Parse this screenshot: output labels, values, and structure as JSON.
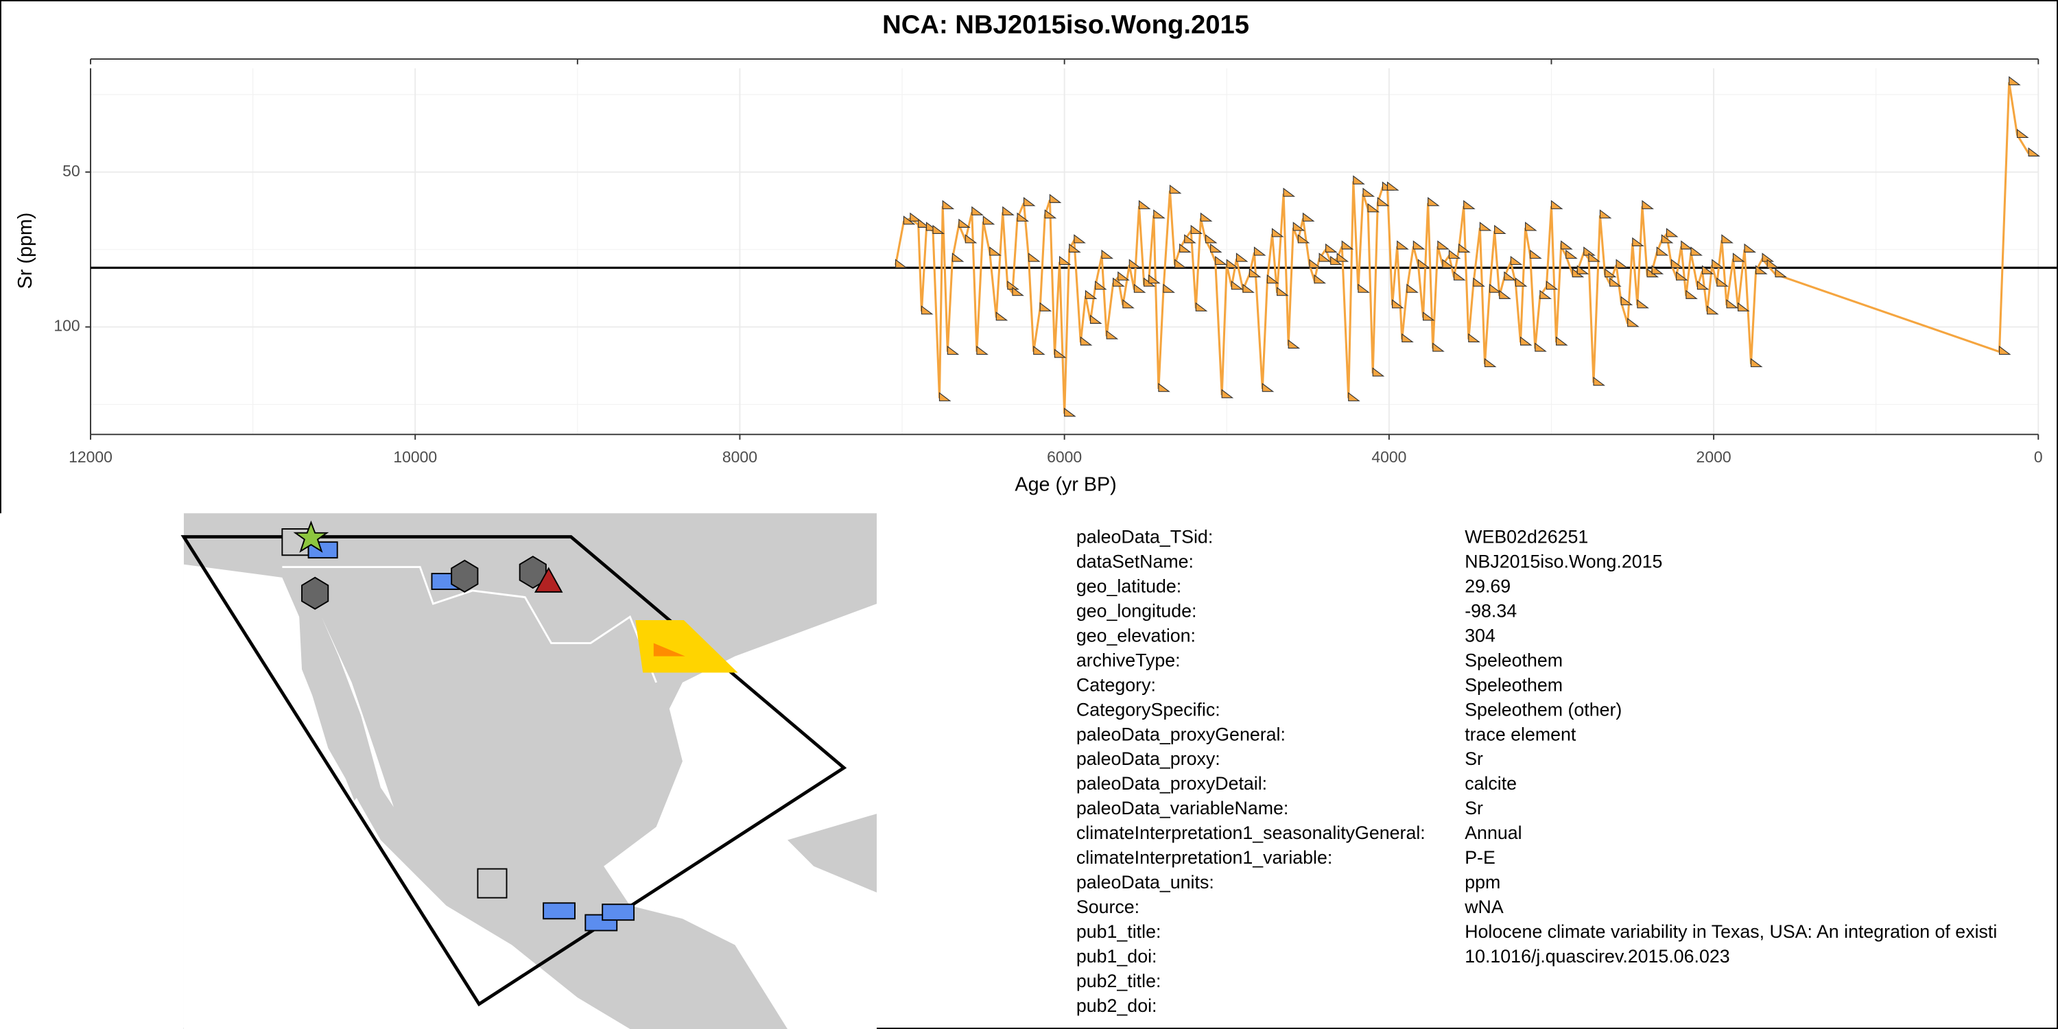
{
  "chart_data": {
    "type": "line",
    "title": "NCA: NBJ2015iso.Wong.2015",
    "x_label": "Age (yr BP)",
    "y_label": "Sr (ppm)",
    "color": "#f5a53f",
    "xlim": [
      12000,
      0
    ],
    "xticks": [
      12000,
      10000,
      8000,
      6000,
      4000,
      2000,
      0
    ],
    "x2ticks": [
      12000,
      9000,
      6000,
      3000,
      0
    ],
    "ylim": [
      134.7,
      16.5
    ],
    "yticks": [
      50,
      100
    ],
    "y_reversed": true,
    "grid": true,
    "reference_line": 80.9,
    "x": [
      7040,
      6990,
      6950,
      6900,
      6880,
      6850,
      6810,
      6770,
      6750,
      6720,
      6690,
      6650,
      6610,
      6570,
      6540,
      6500,
      6460,
      6420,
      6380,
      6350,
      6320,
      6290,
      6250,
      6220,
      6190,
      6150,
      6120,
      6090,
      6060,
      6030,
      6000,
      5970,
      5940,
      5900,
      5870,
      5840,
      5810,
      5770,
      5740,
      5700,
      5670,
      5640,
      5600,
      5570,
      5540,
      5510,
      5480,
      5450,
      5420,
      5390,
      5350,
      5320,
      5290,
      5260,
      5220,
      5190,
      5160,
      5130,
      5100,
      5070,
      5030,
      5000,
      4970,
      4940,
      4900,
      4860,
      4830,
      4780,
      4750,
      4720,
      4690,
      4650,
      4620,
      4590,
      4560,
      4530,
      4490,
      4460,
      4430,
      4390,
      4360,
      4320,
      4290,
      4250,
      4220,
      4190,
      4160,
      4130,
      4100,
      4070,
      4040,
      4010,
      3980,
      3950,
      3920,
      3890,
      3850,
      3820,
      3790,
      3760,
      3730,
      3700,
      3670,
      3630,
      3600,
      3570,
      3540,
      3510,
      3480,
      3440,
      3410,
      3380,
      3350,
      3320,
      3290,
      3250,
      3220,
      3190,
      3160,
      3130,
      3100,
      3070,
      3030,
      3000,
      2970,
      2940,
      2910,
      2870,
      2840,
      2800,
      2770,
      2740,
      2700,
      2670,
      2640,
      2600,
      2570,
      2530,
      2500,
      2470,
      2440,
      2410,
      2380,
      2350,
      2320,
      2290,
      2260,
      2230,
      2200,
      2170,
      2140,
      2100,
      2070,
      2040,
      2010,
      1980,
      1950,
      1920,
      1880,
      1850,
      1810,
      1770,
      1740,
      1700,
      1670,
      1620,
      240,
      180,
      130,
      60
    ],
    "values": [
      80,
      66,
      65,
      67,
      95,
      68,
      69,
      123,
      61,
      108,
      78,
      67,
      72,
      63,
      108,
      66,
      76,
      97,
      63,
      87,
      89,
      65,
      60,
      78,
      108,
      94,
      64,
      59,
      109,
      79,
      128,
      75,
      72,
      105,
      90,
      98,
      87,
      77,
      103,
      86,
      84,
      93,
      80,
      88,
      61,
      86,
      85,
      64,
      120,
      88,
      56,
      80,
      75,
      72,
      69,
      94,
      65,
      72,
      75,
      79,
      122,
      80,
      87,
      78,
      88,
      83,
      76,
      120,
      85,
      70,
      89,
      57,
      106,
      68,
      72,
      65,
      80,
      85,
      78,
      75,
      79,
      78,
      74,
      123,
      53,
      88,
      57,
      62,
      115,
      60,
      55,
      55,
      93,
      74,
      104,
      88,
      74,
      80,
      97,
      60,
      107,
      74,
      80,
      77,
      84,
      75,
      61,
      104,
      86,
      68,
      112,
      88,
      69,
      90,
      84,
      79,
      86,
      105,
      68,
      77,
      107,
      90,
      87,
      61,
      105,
      74,
      77,
      83,
      82,
      76,
      78,
      118,
      64,
      83,
      86,
      80,
      92,
      99,
      73,
      93,
      61,
      83,
      82,
      76,
      72,
      70,
      80,
      84,
      74,
      90,
      76,
      87,
      82,
      95,
      80,
      86,
      72,
      93,
      78,
      94,
      75,
      112,
      82,
      78,
      80,
      83,
      108,
      21,
      38,
      44
    ]
  },
  "table": {
    "rows": [
      {
        "key": "paleoData_TSid:",
        "value": "WEB02d26251"
      },
      {
        "key": "dataSetName:",
        "value": "NBJ2015iso.Wong.2015"
      },
      {
        "key": "geo_latitude:",
        "value": "29.69"
      },
      {
        "key": "geo_longitude:",
        "value": "-98.34"
      },
      {
        "key": "geo_elevation:",
        "value": "304"
      },
      {
        "key": "archiveType:",
        "value": "Speleothem"
      },
      {
        "key": "Category:",
        "value": "Speleothem"
      },
      {
        "key": "CategorySpecific:",
        "value": "Speleothem (other)"
      },
      {
        "key": "paleoData_proxyGeneral:",
        "value": "trace element"
      },
      {
        "key": "paleoData_proxy:",
        "value": "Sr"
      },
      {
        "key": "paleoData_proxyDetail:",
        "value": "calcite"
      },
      {
        "key": "paleoData_variableName:",
        "value": "Sr"
      },
      {
        "key": "climateInterpretation1_seasonalityGeneral:",
        "value": "Annual"
      },
      {
        "key": "climateInterpretation1_variable:",
        "value": "P-E"
      },
      {
        "key": "paleoData_units:",
        "value": "ppm"
      },
      {
        "key": "Source:",
        "value": "wNA"
      },
      {
        "key": "pub1_title:",
        "value": "Holocene climate variability in Texas, USA: An integration of existi"
      },
      {
        "key": "pub1_doi:",
        "value": "10.1016/j.quascirev.2015.06.023"
      },
      {
        "key": "pub2_title:"
      },
      {
        "key": "pub2_doi:"
      }
    ]
  }
}
